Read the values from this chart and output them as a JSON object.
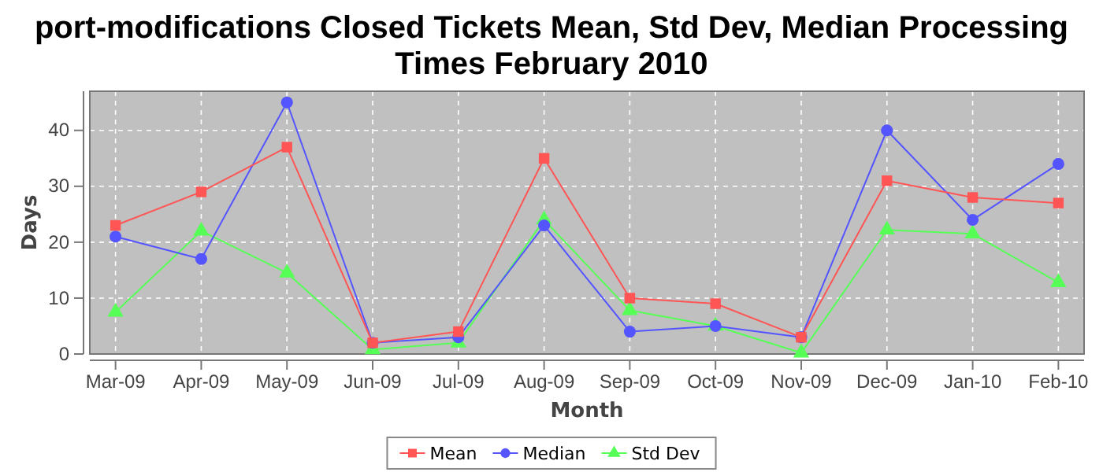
{
  "chart_data": {
    "type": "line",
    "title": "port-modifications Closed Tickets Mean, Std Dev, Median Processing Times February 2010",
    "xlabel": "Month",
    "ylabel": "Days",
    "categories": [
      "Mar-09",
      "Apr-09",
      "May-09",
      "Jun-09",
      "Jul-09",
      "Aug-09",
      "Sep-09",
      "Oct-09",
      "Nov-09",
      "Dec-09",
      "Jan-10",
      "Feb-10"
    ],
    "series": [
      {
        "name": "Mean",
        "color": "#ff5555",
        "marker": "square",
        "values": [
          23,
          29,
          37,
          2,
          4,
          35,
          10,
          9,
          3,
          31,
          28,
          27
        ]
      },
      {
        "name": "Median",
        "color": "#5555ff",
        "marker": "circle",
        "values": [
          21,
          17,
          45,
          2,
          3,
          23,
          4,
          5,
          3,
          40,
          24,
          34
        ]
      },
      {
        "name": "Std Dev",
        "color": "#55ff55",
        "marker": "triangle",
        "values": [
          7.5,
          22,
          14.5,
          0.8,
          2,
          24,
          7.8,
          5,
          0.2,
          22.2,
          21.5,
          12.8
        ]
      }
    ],
    "ylim": [
      0,
      47
    ],
    "yticks": [
      0,
      10,
      20,
      30,
      40
    ],
    "grid": true,
    "legend": "bottom"
  }
}
